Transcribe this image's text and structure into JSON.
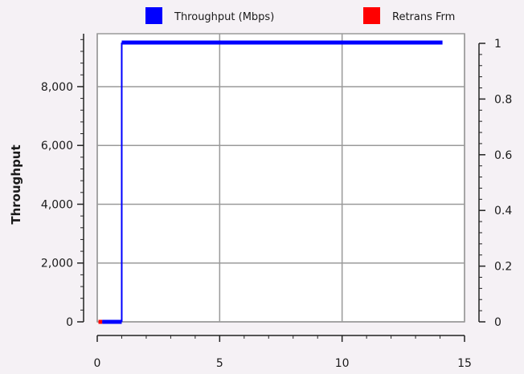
{
  "chart_data": {
    "type": "line",
    "title": "",
    "xlabel": "",
    "ylabel": "Throughput",
    "y2label": "",
    "xlim": [
      0,
      15
    ],
    "ylim": [
      0,
      9800
    ],
    "y2lim": [
      0,
      1
    ],
    "x_ticks": [
      0,
      5,
      10,
      15
    ],
    "x_tick_labels": [
      "0",
      "5",
      "10",
      "15"
    ],
    "y_ticks": [
      0,
      2000,
      4000,
      6000,
      8000
    ],
    "y_tick_labels": [
      "0",
      "2,000",
      "4,000",
      "6,000",
      "8,000"
    ],
    "y2_ticks": [
      0,
      0.2,
      0.4,
      0.6,
      0.8,
      1
    ],
    "y2_tick_labels": [
      "0",
      "0.2",
      "0.4",
      "0.6",
      "0.8",
      "1"
    ],
    "grid": true,
    "legend_position": "top",
    "series": [
      {
        "name": "Throughput (Mbps)",
        "color": "#0000ff",
        "axis": "left",
        "points": [
          [
            0.2,
            0
          ],
          [
            1.0,
            0
          ],
          [
            1.0,
            9500
          ],
          [
            14.1,
            9500
          ]
        ]
      },
      {
        "name": "Retrans Frm",
        "color": "#ff0000",
        "axis": "right",
        "points": [
          [
            0.05,
            0
          ],
          [
            0.2,
            0
          ]
        ]
      }
    ]
  }
}
